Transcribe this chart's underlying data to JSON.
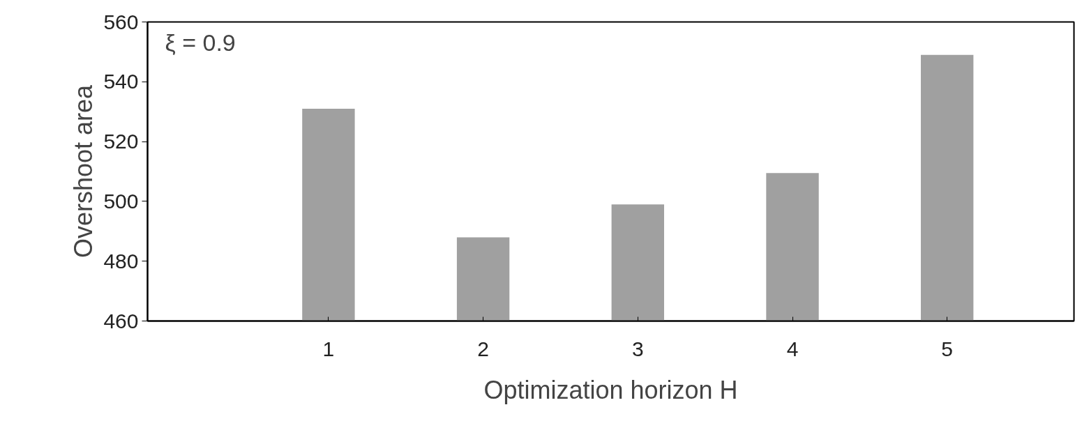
{
  "chart_data": {
    "type": "bar",
    "x": [
      1,
      2,
      3,
      4,
      5
    ],
    "values": [
      531,
      488,
      499,
      509.5,
      549
    ],
    "color": "#a0a0a0",
    "xlabel": "Optimization horizon H",
    "ylabel": "Overshoot area",
    "annotations": [
      "ξ = 0.9"
    ],
    "xlim": [
      -0.17,
      5.82
    ],
    "xticks": [
      1,
      2,
      3,
      4,
      5
    ],
    "ylim": [
      460,
      560
    ],
    "yticks": [
      460,
      480,
      500,
      520,
      540,
      560
    ],
    "grid": false
  }
}
